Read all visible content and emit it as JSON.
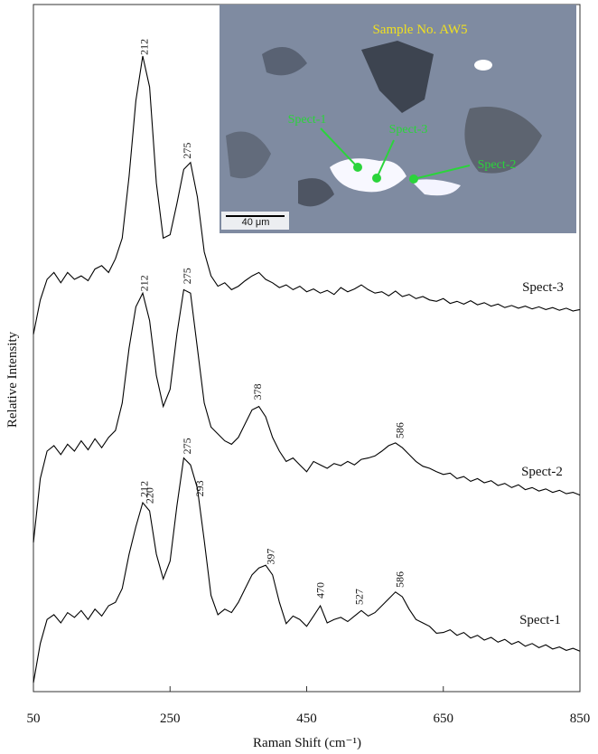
{
  "chart_data": {
    "type": "line",
    "x_label": "Raman Shift (cm⁻¹)",
    "y_label": "Relative Intensity",
    "xlim": [
      50,
      850
    ],
    "xticks": [
      50,
      250,
      450,
      650,
      850
    ],
    "ylim": [
      0,
      100
    ],
    "x": [
      50,
      60,
      70,
      80,
      90,
      100,
      110,
      120,
      130,
      140,
      150,
      160,
      170,
      180,
      190,
      200,
      210,
      220,
      230,
      240,
      250,
      260,
      270,
      280,
      290,
      300,
      310,
      320,
      330,
      340,
      350,
      360,
      370,
      380,
      390,
      400,
      410,
      420,
      430,
      440,
      450,
      460,
      470,
      480,
      490,
      500,
      510,
      520,
      530,
      540,
      550,
      560,
      570,
      580,
      590,
      600,
      610,
      620,
      630,
      640,
      650,
      660,
      670,
      680,
      690,
      700,
      710,
      720,
      730,
      740,
      750,
      760,
      770,
      780,
      790,
      800,
      810,
      820,
      830,
      840,
      850
    ],
    "series": [
      {
        "name": "Spect-3",
        "color": "#000000",
        "peaks": [
          212,
          275
        ],
        "values": [
          52,
          57,
          60,
          61,
          59.5,
          61,
          60,
          60.5,
          59.8,
          61.5,
          62,
          61,
          63,
          66,
          75,
          86,
          92.5,
          88,
          74,
          66,
          66.5,
          71,
          76,
          77,
          72,
          64,
          60.5,
          59,
          59.5,
          58.5,
          59,
          59.8,
          60.5,
          61,
          60,
          59.5,
          58.8,
          59.2,
          58.5,
          59,
          58.2,
          58.6,
          58,
          58.4,
          57.8,
          58.8,
          58.2,
          58.6,
          59.2,
          58.5,
          58,
          58.2,
          57.6,
          58.3,
          57.5,
          57.8,
          57.2,
          57.5,
          57,
          56.8,
          57.2,
          56.5,
          56.8,
          56.4,
          56.9,
          56.3,
          56.6,
          56.1,
          56.4,
          55.9,
          56.2,
          55.8,
          56.1,
          55.7,
          56,
          55.6,
          55.9,
          55.5,
          55.8,
          55.4,
          55.6
        ]
      },
      {
        "name": "Spect-2",
        "color": "#000000",
        "peaks": [
          212,
          275,
          378,
          586
        ],
        "values": [
          21.7,
          31,
          35,
          35.8,
          34.5,
          36,
          35,
          36.5,
          35.2,
          36.8,
          35.5,
          37,
          38,
          42,
          50,
          56,
          58,
          54,
          46,
          41.5,
          44,
          52,
          58.5,
          58,
          50,
          42,
          38.5,
          37.5,
          36.5,
          36,
          37,
          39,
          41,
          41.5,
          40,
          37,
          35,
          33.5,
          34,
          33,
          32,
          33.5,
          33,
          32.5,
          33.2,
          32.9,
          33.5,
          33,
          33.8,
          34,
          34.3,
          35,
          35.8,
          36.2,
          35.5,
          34.5,
          33.5,
          32.8,
          32.5,
          32,
          31.6,
          31.8,
          31,
          31.3,
          30.6,
          31,
          30.4,
          30.7,
          30,
          30.3,
          29.7,
          30.1,
          29.4,
          29.7,
          29.2,
          29.5,
          29,
          29.3,
          28.8,
          29,
          28.6
        ]
      },
      {
        "name": "Spect-1",
        "color": "#000000",
        "peaks": [
          212,
          220,
          275,
          293,
          397,
          470,
          527,
          586
        ],
        "values": [
          1.3,
          7,
          10.5,
          11.2,
          10,
          11.5,
          10.8,
          11.8,
          10.5,
          12,
          11,
          12.5,
          13,
          15,
          20,
          24,
          27.5,
          26.3,
          20,
          16.4,
          19,
          27,
          34,
          33,
          29.6,
          22,
          14,
          11.2,
          12,
          11.5,
          13,
          15,
          17,
          18,
          18.4,
          17,
          13,
          9.9,
          11,
          10.5,
          9.5,
          11,
          12.5,
          10,
          10.5,
          10.8,
          10.2,
          11,
          11.8,
          11,
          11.5,
          12.5,
          13.5,
          14.5,
          13.8,
          12,
          10.5,
          10,
          9.5,
          8.5,
          8.6,
          9,
          8.2,
          8.6,
          7.8,
          8.2,
          7.5,
          7.9,
          7.2,
          7.6,
          6.9,
          7.3,
          6.6,
          7,
          6.4,
          6.8,
          6.2,
          6.5,
          6,
          6.3,
          5.9
        ]
      }
    ],
    "inset": {
      "title": "Sample No. AW5",
      "labels": [
        "Spect-1",
        "Spect-3",
        "Spect-2"
      ],
      "scale_bar": "40 μm"
    }
  }
}
